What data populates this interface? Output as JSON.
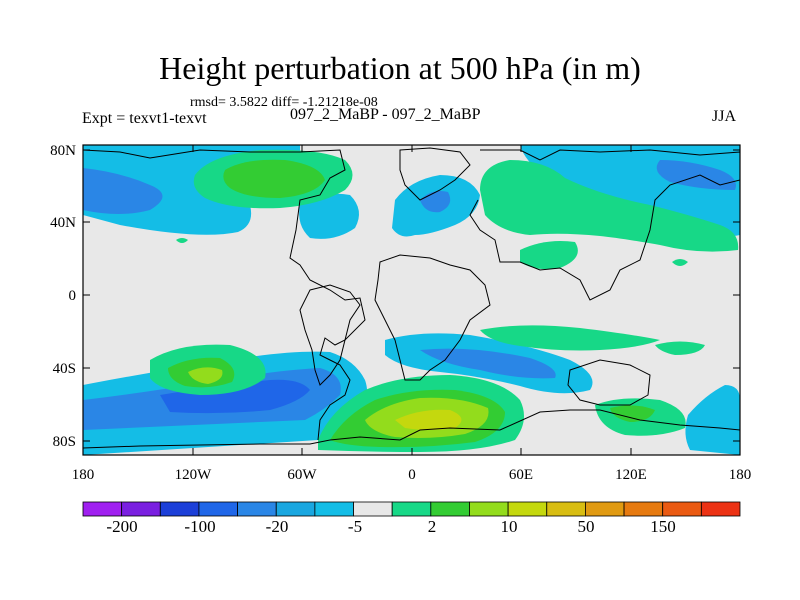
{
  "title": "Height perturbation at 500 hPa (in m)",
  "subtitle": "rmsd= 3.5822 diff= -1.21218e-08",
  "left_label": "Expt = texvt1-texvt",
  "center_label": "097_2_MaBP - 097_2_MaBP",
  "right_label": "JJA",
  "axes": {
    "lat_ticks": [
      "80N",
      "40N",
      "0",
      "40S",
      "80S"
    ],
    "lon_ticks": [
      "180",
      "120W",
      "60W",
      "0",
      "60E",
      "120E",
      "180"
    ]
  },
  "colorbar": {
    "labels": [
      "-200",
      "-100",
      "-20",
      "-5",
      "2",
      "10",
      "50",
      "150"
    ],
    "colors": [
      "#a020f0",
      "#7a1fe0",
      "#1c3fd8",
      "#1f66e8",
      "#2a86e6",
      "#1aa7e0",
      "#14bde6",
      "#e8e8e8",
      "#17d887",
      "#33cc33",
      "#93dc1c",
      "#c4d80e",
      "#d8bd12",
      "#e09a12",
      "#e67a10",
      "#ea5a12",
      "#ec3214"
    ]
  },
  "map": {
    "background": "#e8e8e8",
    "fills": [
      {
        "level": "-5",
        "color": "#14bde6"
      },
      {
        "level": "-20",
        "color": "#2a86e6"
      },
      {
        "level": "-100",
        "color": "#1f66e8"
      },
      {
        "level": "2",
        "color": "#17d887"
      },
      {
        "level": "10",
        "color": "#33cc33"
      },
      {
        "level": "50",
        "color": "#93dc1c"
      }
    ]
  }
}
